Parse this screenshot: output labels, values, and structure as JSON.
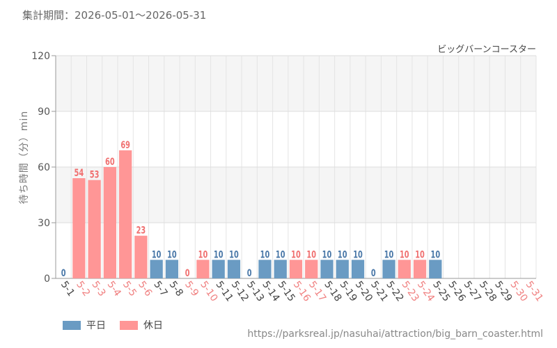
{
  "header": {
    "period": "集計期間：2026-05-01～2026-05-31"
  },
  "chart_data": {
    "type": "bar",
    "attraction": "ビッグバーンコースター",
    "ylabel": "待ち時間（分）min",
    "ylim": [
      0,
      120
    ],
    "yticks": [
      0,
      30,
      60,
      90,
      120
    ],
    "grid": true,
    "legend_position": "bottom-left",
    "categories": [
      "5-1",
      "5-2",
      "5-3",
      "5-4",
      "5-5",
      "5-6",
      "5-7",
      "5-8",
      "5-9",
      "5-10",
      "5-11",
      "5-12",
      "5-13",
      "5-14",
      "5-15",
      "5-16",
      "5-17",
      "5-18",
      "5-19",
      "5-20",
      "5-21",
      "5-22",
      "5-23",
      "5-24",
      "5-25",
      "5-26",
      "5-27",
      "5-28",
      "5-29",
      "5-30",
      "5-31"
    ],
    "values": [
      0,
      54,
      53,
      60,
      69,
      23,
      10,
      10,
      0,
      10,
      10,
      10,
      0,
      10,
      10,
      10,
      10,
      10,
      10,
      10,
      0,
      10,
      10,
      10,
      10,
      null,
      null,
      null,
      null,
      null,
      null
    ],
    "day_type": [
      "weekday",
      "holiday",
      "holiday",
      "holiday",
      "holiday",
      "holiday",
      "weekday",
      "weekday",
      "holiday",
      "holiday",
      "weekday",
      "weekday",
      "weekday",
      "weekday",
      "weekday",
      "holiday",
      "holiday",
      "weekday",
      "weekday",
      "weekday",
      "weekday",
      "weekday",
      "holiday",
      "holiday",
      "weekday",
      "weekday",
      "weekday",
      "weekday",
      "weekday",
      "holiday",
      "holiday"
    ],
    "series": [
      {
        "key": "weekday",
        "name": "平日",
        "color": "#6a9bc3"
      },
      {
        "key": "holiday",
        "name": "休日",
        "color": "#ff9696"
      }
    ],
    "tick_colors": {
      "weekday": "#444444",
      "holiday": "#f08080"
    },
    "label_colors": {
      "weekday": "#4a78a8",
      "holiday": "#f07070"
    }
  },
  "footer": {
    "source": "https://parksreal.jp/nasuhai/attraction/big_barn_coaster.html"
  }
}
